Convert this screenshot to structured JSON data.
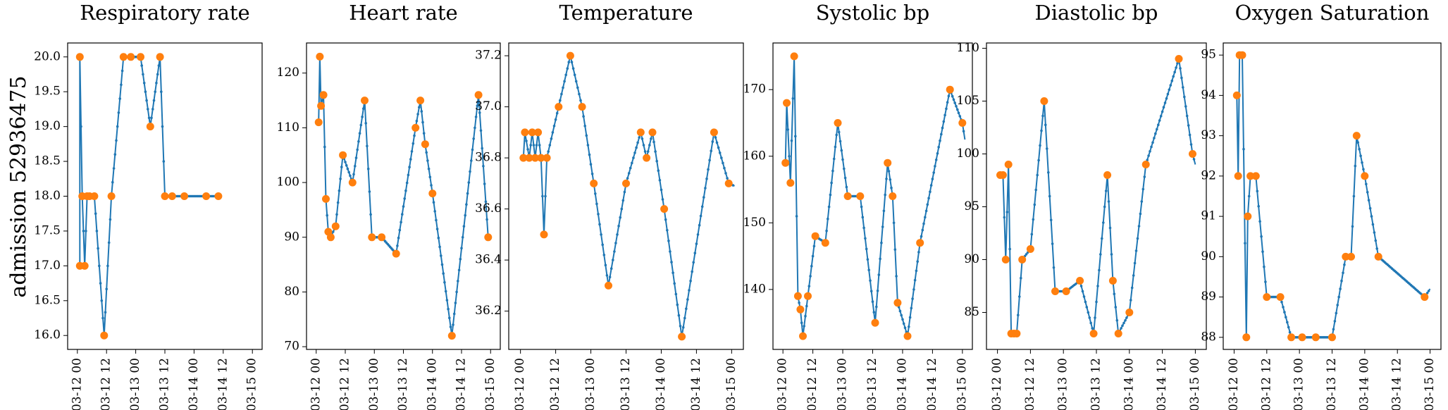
{
  "row_label": "admission 52936475",
  "colors": {
    "line": "#1f77b4",
    "observation": "#ff7f0e"
  },
  "chart_data": [
    {
      "type": "line",
      "title": "Respiratory rate",
      "x_ticks": [
        "03-12 00",
        "03-12 12",
        "03-13 00",
        "03-13 12",
        "03-14 00",
        "03-14 12",
        "03-15 00"
      ],
      "y_ticks": [
        "16.0",
        "16.5",
        "17.0",
        "17.5",
        "18.0",
        "18.5",
        "19.0",
        "19.5",
        "20.0"
      ],
      "xlim": [
        -4,
        76
      ],
      "ylim": [
        15.8,
        20.2
      ],
      "observations": [
        [
          1,
          17
        ],
        [
          1,
          20
        ],
        [
          2,
          18
        ],
        [
          3,
          17
        ],
        [
          4,
          18
        ],
        [
          5,
          18
        ],
        [
          7,
          18
        ],
        [
          11,
          16
        ],
        [
          14,
          18
        ],
        [
          19,
          20
        ],
        [
          22,
          20
        ],
        [
          26,
          20
        ],
        [
          30,
          19
        ],
        [
          34,
          20
        ],
        [
          36,
          18
        ],
        [
          39,
          18
        ],
        [
          44,
          18
        ],
        [
          53,
          18
        ],
        [
          58,
          18
        ]
      ],
      "series_end": [
        [
          58,
          18
        ]
      ]
    },
    {
      "type": "line",
      "title": "Heart rate",
      "x_ticks": [
        "03-12 00",
        "03-12 12",
        "03-13 00",
        "03-13 12",
        "03-14 00",
        "03-14 12",
        "03-15 00"
      ],
      "y_ticks": [
        "70",
        "80",
        "90",
        "100",
        "110",
        "120"
      ],
      "xlim": [
        -4,
        76
      ],
      "ylim": [
        69.5,
        125.5
      ],
      "observations": [
        [
          1,
          111
        ],
        [
          1.5,
          123
        ],
        [
          2,
          114
        ],
        [
          3,
          116
        ],
        [
          4,
          97
        ],
        [
          5,
          91
        ],
        [
          6,
          90
        ],
        [
          8,
          92
        ],
        [
          11,
          105
        ],
        [
          15,
          100
        ],
        [
          20,
          115
        ],
        [
          23,
          90
        ],
        [
          27,
          90
        ],
        [
          33,
          87
        ],
        [
          41,
          110
        ],
        [
          43,
          115
        ],
        [
          45,
          107
        ],
        [
          48,
          98
        ],
        [
          56,
          72
        ],
        [
          67,
          116
        ],
        [
          71,
          90
        ]
      ],
      "series_end": []
    },
    {
      "type": "line",
      "title": "Temperature",
      "x_ticks": [
        "03-12 00",
        "03-12 12",
        "03-13 00",
        "03-13 12",
        "03-14 00",
        "03-14 12",
        "03-15 00"
      ],
      "y_ticks": [
        "36.2",
        "36.4",
        "36.6",
        "36.8",
        "37.0",
        "37.2"
      ],
      "xlim": [
        -4,
        76
      ],
      "ylim": [
        36.05,
        37.25
      ],
      "observations": [
        [
          1,
          36.8
        ],
        [
          1.5,
          36.9
        ],
        [
          3,
          36.8
        ],
        [
          4,
          36.9
        ],
        [
          5,
          36.8
        ],
        [
          6,
          36.9
        ],
        [
          7,
          36.8
        ],
        [
          8,
          36.5
        ],
        [
          9,
          36.8
        ],
        [
          13,
          37.0
        ],
        [
          17,
          37.2
        ],
        [
          21,
          37.0
        ],
        [
          25,
          36.7
        ],
        [
          30,
          36.3
        ],
        [
          36,
          36.7
        ],
        [
          41,
          36.9
        ],
        [
          43,
          36.8
        ],
        [
          45,
          36.9
        ],
        [
          49,
          36.6
        ],
        [
          55,
          36.1
        ],
        [
          66,
          36.9
        ],
        [
          71,
          36.7
        ]
      ],
      "series_end": [
        [
          73,
          36.69
        ]
      ]
    },
    {
      "type": "line",
      "title": "Systolic bp",
      "x_ticks": [
        "03-12 00",
        "03-12 12",
        "03-13 00",
        "03-13 12",
        "03-14 00",
        "03-14 12",
        "03-15 00"
      ],
      "y_ticks": [
        "140",
        "150",
        "160",
        "170"
      ],
      "xlim": [
        -4,
        76
      ],
      "ylim": [
        131,
        177
      ],
      "observations": [
        [
          1,
          159
        ],
        [
          1.5,
          168
        ],
        [
          3,
          156
        ],
        [
          4.5,
          175
        ],
        [
          6,
          139
        ],
        [
          7,
          137
        ],
        [
          8,
          133
        ],
        [
          10,
          139
        ],
        [
          13,
          148
        ],
        [
          17,
          147
        ],
        [
          22,
          165
        ],
        [
          26,
          154
        ],
        [
          31,
          154
        ],
        [
          37,
          135
        ],
        [
          42,
          159
        ],
        [
          44,
          154
        ],
        [
          46,
          138
        ],
        [
          50,
          133
        ],
        [
          55,
          147
        ],
        [
          67,
          170
        ],
        [
          72,
          165
        ]
      ],
      "series_end": [
        [
          73,
          162.5
        ]
      ]
    },
    {
      "type": "line",
      "title": "Diastolic bp",
      "x_ticks": [
        "03-12 00",
        "03-12 12",
        "03-13 00",
        "03-13 12",
        "03-14 00",
        "03-14 12",
        "03-15 00"
      ],
      "y_ticks": [
        "85",
        "90",
        "95",
        "100",
        "105",
        "110"
      ],
      "xlim": [
        -4,
        76
      ],
      "ylim": [
        81.5,
        110.5
      ],
      "observations": [
        [
          1,
          98
        ],
        [
          2,
          98
        ],
        [
          3,
          90
        ],
        [
          4,
          99
        ],
        [
          5,
          83
        ],
        [
          6,
          83
        ],
        [
          7,
          83
        ],
        [
          9,
          90
        ],
        [
          12,
          91
        ],
        [
          17,
          105
        ],
        [
          21,
          87
        ],
        [
          25,
          87
        ],
        [
          30,
          88
        ],
        [
          35,
          83
        ],
        [
          40,
          98
        ],
        [
          42,
          88
        ],
        [
          44,
          83
        ],
        [
          48,
          85
        ],
        [
          54,
          99
        ],
        [
          66,
          109
        ],
        [
          71,
          100
        ]
      ],
      "series_end": [
        [
          72,
          99
        ]
      ]
    },
    {
      "type": "line",
      "title": "Oxygen Saturation",
      "x_ticks": [
        "03-12 00",
        "03-12 12",
        "03-13 00",
        "03-13 12",
        "03-14 00",
        "03-14 12",
        "03-15 00"
      ],
      "y_ticks": [
        "88",
        "89",
        "90",
        "91",
        "92",
        "93",
        "94",
        "95"
      ],
      "xlim": [
        -4,
        76
      ],
      "ylim": [
        87.7,
        95.3
      ],
      "observations": [
        [
          1,
          94
        ],
        [
          1.5,
          92
        ],
        [
          2,
          95
        ],
        [
          3,
          95
        ],
        [
          4.5,
          88
        ],
        [
          5,
          91
        ],
        [
          6,
          92
        ],
        [
          8,
          92
        ],
        [
          12,
          89
        ],
        [
          17,
          89
        ],
        [
          21,
          88
        ],
        [
          25,
          88
        ],
        [
          30,
          88
        ],
        [
          36,
          88
        ],
        [
          41,
          90
        ],
        [
          43,
          90
        ],
        [
          45,
          93
        ],
        [
          48,
          92
        ],
        [
          53,
          90
        ],
        [
          70,
          89
        ]
      ],
      "series_end": [
        [
          72,
          89.2
        ]
      ]
    }
  ]
}
